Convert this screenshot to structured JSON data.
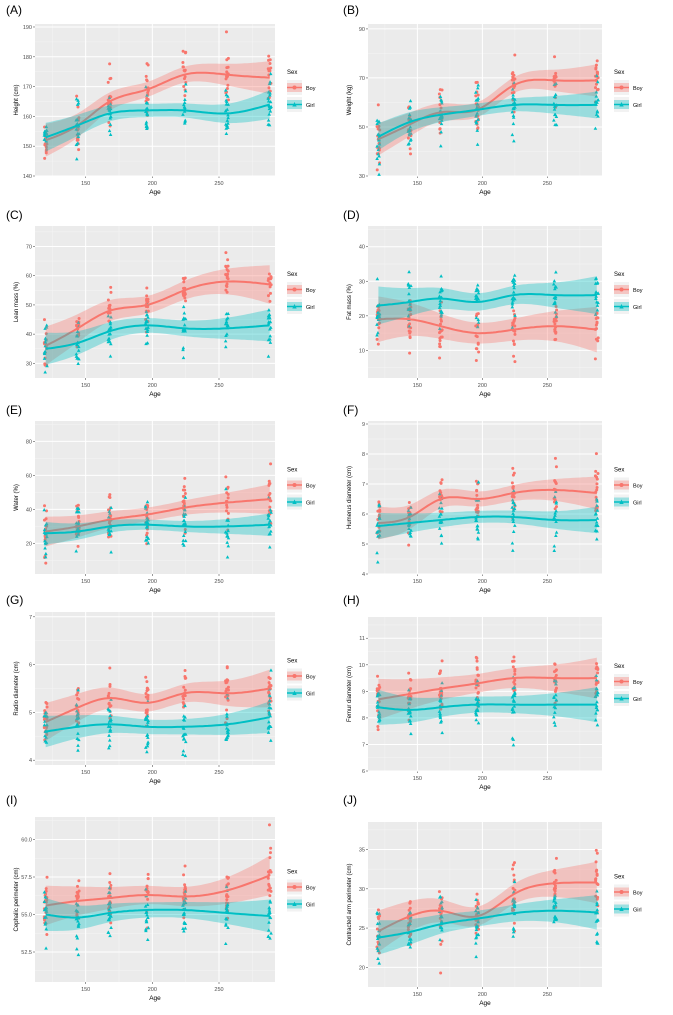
{
  "figure": {
    "description_panels": [
      "A",
      "B",
      "C",
      "D",
      "E",
      "F",
      "G",
      "H",
      "I",
      "J"
    ]
  },
  "colors": {
    "boy": "#F8766D",
    "girl": "#00BFC4",
    "panel_bg": "#EBEBEB",
    "grid": "#ffffff"
  },
  "chart_data": [
    {
      "panel": "(A)",
      "type": "scatter",
      "xlabel": "Age",
      "ylabel": "Height (cm)",
      "xlim": [
        112,
        292
      ],
      "ylim": [
        140,
        191
      ],
      "xticks": [
        150,
        200,
        250
      ],
      "yticks": [
        140,
        150,
        160,
        170,
        180,
        190
      ],
      "legend_title": "Sex",
      "legend": [
        "Boy",
        "Girl"
      ],
      "series": [
        {
          "name": "Boy",
          "x": [
            120,
            144,
            168,
            196,
            224,
            256,
            288
          ],
          "y": [
            152,
            157,
            165,
            169,
            174,
            174,
            173
          ],
          "band": 2.5
        },
        {
          "name": "Girl",
          "x": [
            120,
            144,
            168,
            196,
            224,
            256,
            288
          ],
          "y": [
            153,
            157,
            161,
            162,
            162,
            161,
            164
          ],
          "band": 2.2
        }
      ]
    },
    {
      "panel": "(B)",
      "type": "scatter",
      "xlabel": "Age",
      "ylabel": "Weight (kg)",
      "xlim": [
        112,
        292
      ],
      "ylim": [
        30,
        92
      ],
      "xticks": [
        150,
        200,
        250
      ],
      "yticks": [
        30,
        50,
        70,
        90
      ],
      "legend_title": "Sex",
      "legend": [
        "Boy",
        "Girl"
      ],
      "series": [
        {
          "name": "Boy",
          "x": [
            120,
            144,
            168,
            196,
            224,
            256,
            288
          ],
          "y": [
            45,
            51,
            56,
            57,
            67,
            69,
            69
          ],
          "band": 3
        },
        {
          "name": "Girl",
          "x": [
            120,
            144,
            168,
            196,
            224,
            256,
            288
          ],
          "y": [
            46,
            52,
            55,
            57,
            59,
            59,
            59
          ],
          "band": 2.5
        }
      ]
    },
    {
      "panel": "(C)",
      "type": "scatter",
      "xlabel": "Age",
      "ylabel": "Lean mass (%)",
      "xlim": [
        112,
        292
      ],
      "ylim": [
        25,
        77
      ],
      "xticks": [
        150,
        200,
        250
      ],
      "yticks": [
        30,
        40,
        50,
        60,
        70
      ],
      "legend_title": "Sex",
      "legend": [
        "Boy",
        "Girl"
      ],
      "series": [
        {
          "name": "Boy",
          "x": [
            120,
            144,
            168,
            196,
            224,
            256,
            288
          ],
          "y": [
            36,
            42,
            48,
            50,
            55,
            58,
            57
          ],
          "band": 3
        },
        {
          "name": "Girl",
          "x": [
            120,
            144,
            168,
            196,
            224,
            256,
            288
          ],
          "y": [
            35,
            37,
            41,
            43,
            42,
            42,
            43
          ],
          "band": 2.5
        }
      ]
    },
    {
      "panel": "(D)",
      "type": "scatter",
      "xlabel": "Age",
      "ylabel": "Fat mass (%)",
      "xlim": [
        112,
        292
      ],
      "ylim": [
        2,
        46
      ],
      "xticks": [
        150,
        200,
        250
      ],
      "yticks": [
        10,
        20,
        30,
        40
      ],
      "legend_title": "Sex",
      "legend": [
        "Boy",
        "Girl"
      ],
      "series": [
        {
          "name": "Boy",
          "x": [
            120,
            144,
            168,
            196,
            224,
            256,
            288
          ],
          "y": [
            19,
            19,
            17,
            15,
            16,
            17,
            16
          ],
          "band": 3
        },
        {
          "name": "Girl",
          "x": [
            120,
            144,
            168,
            196,
            224,
            256,
            288
          ],
          "y": [
            23,
            24,
            25,
            24,
            26,
            26,
            26
          ],
          "band": 2.5
        }
      ]
    },
    {
      "panel": "(E)",
      "type": "scatter",
      "xlabel": "Age",
      "ylabel": "Water (%)",
      "xlim": [
        112,
        292
      ],
      "ylim": [
        2,
        92
      ],
      "xticks": [
        150,
        200,
        250
      ],
      "yticks": [
        20,
        40,
        60,
        80
      ],
      "legend_title": "Sex",
      "legend": [
        "Boy",
        "Girl"
      ],
      "series": [
        {
          "name": "Boy",
          "x": [
            120,
            144,
            168,
            196,
            224,
            256,
            288
          ],
          "y": [
            27,
            30,
            34,
            37,
            41,
            44,
            46
          ],
          "band": 4
        },
        {
          "name": "Girl",
          "x": [
            120,
            144,
            168,
            196,
            224,
            256,
            288
          ],
          "y": [
            26,
            27,
            30,
            31,
            30,
            30,
            31
          ],
          "band": 3
        }
      ]
    },
    {
      "panel": "(F)",
      "type": "scatter",
      "xlabel": "Age",
      "ylabel": "Humerus diameter (cm)",
      "xlim": [
        112,
        292
      ],
      "ylim": [
        4,
        9.1
      ],
      "xticks": [
        150,
        200,
        250
      ],
      "yticks": [
        4,
        5,
        6,
        7,
        8,
        9
      ],
      "legend_title": "Sex",
      "legend": [
        "Boy",
        "Girl"
      ],
      "series": [
        {
          "name": "Boy",
          "x": [
            120,
            144,
            168,
            196,
            224,
            256,
            288
          ],
          "y": [
            5.7,
            5.9,
            6.5,
            6.5,
            6.7,
            6.8,
            6.7
          ],
          "band": 0.25
        },
        {
          "name": "Girl",
          "x": [
            120,
            144,
            168,
            196,
            224,
            256,
            288
          ],
          "y": [
            5.6,
            5.7,
            5.8,
            5.9,
            5.9,
            5.8,
            5.8
          ],
          "band": 0.2
        }
      ]
    },
    {
      "panel": "(G)",
      "type": "scatter",
      "xlabel": "Age",
      "ylabel": "Radio diameter (cm)",
      "xlim": [
        112,
        292
      ],
      "ylim": [
        3.9,
        7.1
      ],
      "xticks": [
        150,
        200,
        250
      ],
      "yticks": [
        4,
        5,
        6,
        7
      ],
      "legend_title": "Sex",
      "legend": [
        "Boy",
        "Girl"
      ],
      "series": [
        {
          "name": "Boy",
          "x": [
            120,
            144,
            168,
            196,
            224,
            256,
            288
          ],
          "y": [
            4.8,
            5.1,
            5.3,
            5.2,
            5.4,
            5.4,
            5.5
          ],
          "band": 0.18
        },
        {
          "name": "Girl",
          "x": [
            120,
            144,
            168,
            196,
            224,
            256,
            288
          ],
          "y": [
            4.6,
            4.7,
            4.75,
            4.7,
            4.7,
            4.75,
            4.9
          ],
          "band": 0.15
        }
      ]
    },
    {
      "panel": "(H)",
      "type": "scatter",
      "xlabel": "Age",
      "ylabel": "Femur diameter (cm)",
      "xlim": [
        112,
        292
      ],
      "ylim": [
        6,
        11.8
      ],
      "xticks": [
        150,
        200,
        250
      ],
      "yticks": [
        6,
        7,
        8,
        9,
        10,
        11
      ],
      "legend_title": "Sex",
      "legend": [
        "Boy",
        "Girl"
      ],
      "series": [
        {
          "name": "Boy",
          "x": [
            120,
            144,
            168,
            196,
            224,
            256,
            288
          ],
          "y": [
            8.7,
            8.9,
            9.1,
            9.3,
            9.5,
            9.5,
            9.5
          ],
          "band": 0.35
        },
        {
          "name": "Girl",
          "x": [
            120,
            144,
            168,
            196,
            224,
            256,
            288
          ],
          "y": [
            8.4,
            8.3,
            8.4,
            8.5,
            8.5,
            8.5,
            8.5
          ],
          "band": 0.3
        }
      ]
    },
    {
      "panel": "(I)",
      "type": "scatter",
      "xlabel": "Age",
      "ylabel": "Cephalic perimeter (cm)",
      "xlim": [
        112,
        292
      ],
      "ylim": [
        50.5,
        61.5
      ],
      "xticks": [
        150,
        200,
        250
      ],
      "yticks": [
        52.5,
        55.0,
        57.5,
        60.0
      ],
      "legend_title": "Sex",
      "legend": [
        "Boy",
        "Girl"
      ],
      "series": [
        {
          "name": "Boy",
          "x": [
            120,
            144,
            168,
            196,
            224,
            256,
            288
          ],
          "y": [
            55.6,
            55.9,
            56.1,
            56.3,
            56.2,
            56.6,
            57.6
          ],
          "band": 0.6
        },
        {
          "name": "Girl",
          "x": [
            120,
            144,
            168,
            196,
            224,
            256,
            288
          ],
          "y": [
            55.0,
            54.8,
            55.1,
            55.3,
            55.3,
            55.1,
            54.9
          ],
          "band": 0.5
        }
      ]
    },
    {
      "panel": "(J)",
      "type": "scatter",
      "xlabel": "Age",
      "ylabel": "Contracted arm perimeter (cm)",
      "xlim": [
        112,
        292
      ],
      "ylim": [
        17.5,
        38.5
      ],
      "xticks": [
        150,
        200,
        250
      ],
      "yticks": [
        20,
        25,
        30,
        35
      ],
      "legend_title": "Sex",
      "legend": [
        "Boy",
        "Girl"
      ],
      "series": [
        {
          "name": "Boy",
          "x": [
            120,
            144,
            168,
            196,
            224,
            256,
            288
          ],
          "y": [
            24.6,
            26.5,
            27.2,
            26.5,
            29.3,
            30.7,
            30.8
          ],
          "band": 1.2
        },
        {
          "name": "Girl",
          "x": [
            120,
            144,
            168,
            196,
            224,
            256,
            288
          ],
          "y": [
            23.8,
            24.5,
            25.5,
            26.2,
            26.9,
            27.2,
            27.0
          ],
          "band": 1.0
        }
      ]
    }
  ]
}
